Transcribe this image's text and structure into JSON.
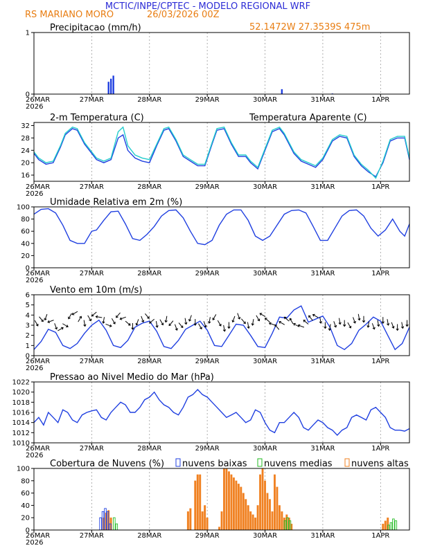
{
  "header": {
    "line1": "MCTIC/INPE/CPTEC - MODELO REGIONAL WRF",
    "location": "RS MARIANO MORO",
    "run": "26/03/2026 00Z",
    "coords": "52.1472W 27.3539S 475m"
  },
  "colors": {
    "blue": "#1f3fe0",
    "cyan": "#22cccc",
    "green": "#22bb22",
    "orange": "#f08020",
    "header_blue": "#2b2bd6",
    "header_orange": "#e87d12"
  },
  "x_axis": {
    "labels": [
      "26MAR",
      "27MAR",
      "28MAR",
      "29MAR",
      "30MAR",
      "31MAR",
      "1APR"
    ],
    "year": "2026",
    "hours": 156
  },
  "chart_data": [
    {
      "type": "bar",
      "id": "precip",
      "title": "Precipitacao (mm/h)",
      "ylim": [
        0,
        1
      ],
      "yticks": [
        "0",
        "1"
      ],
      "x_hours": [
        31,
        32,
        33,
        103,
        124
      ],
      "values": [
        0.2,
        0.25,
        0.3,
        0.08,
        0.01
      ]
    },
    {
      "type": "line",
      "id": "temp",
      "title": "2-m Temperatura (C)",
      "legend": "Temperatura Aparente (C)",
      "ylim": [
        14,
        33
      ],
      "yticks": [
        "16",
        "20",
        "24",
        "28",
        "32"
      ],
      "series": [
        {
          "name": "Temperatura",
          "x": [
            0,
            2,
            5,
            8,
            11,
            13,
            16,
            18,
            21,
            24,
            26,
            29,
            32,
            35,
            37,
            39,
            42,
            45,
            48,
            51,
            54,
            56,
            59,
            62,
            65,
            68,
            71,
            74,
            76,
            79,
            82,
            85,
            88,
            90,
            93,
            96,
            99,
            102,
            104,
            108,
            111,
            114,
            117,
            120,
            124,
            127,
            130,
            133,
            136,
            139,
            142,
            145,
            148,
            151,
            154,
            156
          ],
          "values": [
            23,
            21,
            19.5,
            20,
            25,
            29,
            31,
            30.5,
            26,
            23,
            21,
            20,
            21,
            28,
            29,
            24,
            21.5,
            20.5,
            20,
            25.5,
            30.5,
            31,
            27,
            22,
            20.5,
            19,
            19,
            26,
            30.5,
            31,
            26,
            22,
            22,
            20,
            18,
            24,
            30,
            31,
            29,
            23,
            20.5,
            19.5,
            18.5,
            21,
            27,
            28.5,
            28,
            22,
            19,
            17,
            15.5,
            20,
            27,
            28,
            28,
            21
          ]
        },
        {
          "name": "Temperatura Aparente",
          "x": [
            0,
            2,
            5,
            8,
            11,
            13,
            16,
            18,
            21,
            24,
            26,
            29,
            32,
            35,
            37,
            39,
            42,
            45,
            48,
            51,
            54,
            56,
            59,
            62,
            65,
            68,
            71,
            74,
            76,
            79,
            82,
            85,
            88,
            90,
            93,
            96,
            99,
            102,
            104,
            108,
            111,
            114,
            117,
            120,
            124,
            127,
            130,
            133,
            136,
            139,
            142,
            145,
            148,
            151,
            154,
            156
          ],
          "values": [
            23.5,
            21.5,
            20,
            20.5,
            25.5,
            29.5,
            31.5,
            31,
            26.5,
            23.5,
            21.5,
            20.5,
            21.5,
            30,
            31.5,
            25.5,
            22.5,
            21.5,
            21,
            26,
            31,
            31.5,
            27.5,
            22.5,
            21,
            19.5,
            19.5,
            26.5,
            31,
            31.5,
            26.5,
            22.5,
            22.5,
            20.5,
            18.5,
            24.5,
            30.5,
            31.5,
            29.5,
            23.5,
            21,
            20,
            19,
            21.5,
            27.5,
            29,
            28.5,
            22.5,
            19.5,
            17.5,
            15,
            20.5,
            27.5,
            28.5,
            28.5,
            21.5
          ]
        }
      ]
    },
    {
      "type": "line",
      "id": "rh",
      "title": "Umidade Relativa em 2m (%)",
      "ylim": [
        0,
        100
      ],
      "yticks": [
        "0",
        "20",
        "40",
        "60",
        "80",
        "100"
      ],
      "series": [
        {
          "name": "Umidade Relativa",
          "x": [
            0,
            3,
            6,
            9,
            12,
            15,
            18,
            21,
            24,
            26,
            29,
            32,
            35,
            38,
            41,
            44,
            47,
            50,
            53,
            56,
            59,
            62,
            65,
            68,
            71,
            74,
            77,
            80,
            83,
            86,
            89,
            92,
            95,
            98,
            101,
            104,
            107,
            110,
            113,
            116,
            119,
            122,
            125,
            128,
            131,
            134,
            137,
            140,
            143,
            146,
            149,
            152,
            154,
            156
          ],
          "values": [
            88,
            96,
            97,
            90,
            70,
            45,
            40,
            40,
            60,
            62,
            78,
            92,
            93,
            72,
            48,
            45,
            55,
            68,
            85,
            94,
            95,
            82,
            60,
            40,
            38,
            45,
            70,
            88,
            95,
            95,
            78,
            52,
            45,
            52,
            70,
            88,
            94,
            95,
            90,
            68,
            45,
            45,
            65,
            85,
            94,
            95,
            85,
            65,
            52,
            62,
            80,
            60,
            52,
            72
          ]
        }
      ]
    },
    {
      "type": "line",
      "id": "wind",
      "title": "Vento em 10m (m/s)",
      "ylim": [
        0,
        6
      ],
      "yticks": [
        "0",
        "1",
        "2",
        "3",
        "4",
        "5",
        "6"
      ],
      "series": [
        {
          "name": "Vento",
          "x": [
            0,
            3,
            6,
            9,
            12,
            15,
            18,
            21,
            24,
            27,
            30,
            33,
            36,
            39,
            42,
            45,
            48,
            51,
            54,
            57,
            60,
            63,
            66,
            69,
            72,
            75,
            78,
            81,
            84,
            87,
            90,
            93,
            96,
            99,
            102,
            105,
            108,
            111,
            114,
            117,
            120,
            123,
            126,
            129,
            132,
            135,
            138,
            141,
            144,
            147,
            150,
            153,
            156
          ],
          "values": [
            0.6,
            1.4,
            2.6,
            2.3,
            1,
            0.7,
            1.2,
            2.2,
            3,
            3.5,
            2.5,
            1,
            0.8,
            1.5,
            2.8,
            3.2,
            3.4,
            2.4,
            0.9,
            0.7,
            1.5,
            2.6,
            3,
            3.4,
            2.5,
            1,
            0.9,
            2,
            3.1,
            3,
            2,
            0.9,
            0.8,
            2.2,
            3.8,
            3.7,
            4.5,
            4.9,
            3.3,
            3.6,
            3.9,
            2.8,
            1,
            0.6,
            1.2,
            2.5,
            3.1,
            3.8,
            3.4,
            2,
            0.6,
            1.2,
            2.8
          ]
        }
      ],
      "barbs": {
        "x_hours": [
          1,
          3,
          5,
          7,
          9,
          11,
          13,
          15,
          17,
          19,
          21,
          23,
          25,
          27,
          29,
          31,
          33,
          35,
          37,
          39,
          41,
          43,
          45,
          47,
          49,
          51,
          53,
          55,
          57,
          59,
          61,
          63,
          65,
          67,
          69,
          71,
          73,
          75,
          77,
          79,
          81,
          83,
          85,
          87,
          89,
          91,
          93,
          95,
          97,
          99,
          101,
          103,
          105,
          107,
          109,
          111,
          113,
          115,
          117,
          119,
          121,
          123,
          125,
          127,
          129,
          131,
          133,
          135,
          137,
          139,
          141,
          143,
          145,
          147,
          149,
          151,
          153,
          155
        ],
        "speeds": [
          3.2,
          3.6,
          3.8,
          3.4,
          2.9,
          2.6,
          3.0,
          3.9,
          4.2,
          3.6,
          3.2,
          3.7,
          4.1,
          3.8,
          3.5,
          3.0,
          3.4,
          4.0,
          3.7,
          3.2,
          2.9,
          3.3,
          3.6,
          3.9,
          3.4,
          3.1,
          3.3,
          3.6,
          3.2,
          2.8,
          3.0,
          3.4,
          3.7,
          3.3,
          2.9,
          3.1,
          3.5,
          3.8,
          3.2,
          2.7,
          3.0,
          3.6,
          3.9,
          3.4,
          3.0,
          3.3,
          3.7,
          4.0,
          3.5,
          3.1,
          2.8,
          3.2,
          3.6,
          3.4,
          3.0,
          2.9,
          3.3,
          3.7,
          3.9,
          3.5,
          3.0,
          2.8,
          3.1,
          3.4,
          3.2,
          3.0,
          3.5,
          3.8,
          3.6,
          3.1,
          2.9,
          3.2,
          3.5,
          3.3,
          3.0,
          2.8,
          3.0,
          3.2
        ],
        "directions_deg": [
          300,
          310,
          250,
          200,
          290,
          30,
          330,
          240,
          210,
          60,
          280,
          300,
          220,
          170,
          260,
          340,
          300,
          230,
          200,
          320,
          270,
          250,
          290,
          310,
          220,
          280,
          300,
          260,
          230,
          290,
          310,
          280,
          250,
          270,
          300,
          290,
          260,
          240,
          300,
          280,
          270,
          250,
          290,
          310,
          280,
          260,
          300,
          150,
          140,
          160,
          130,
          150,
          140,
          120,
          150,
          160,
          140,
          130,
          150,
          280,
          270,
          260,
          290,
          280,
          270,
          300,
          290,
          280,
          270,
          260,
          290,
          280,
          270,
          280,
          290,
          270,
          280,
          270
        ]
      }
    },
    {
      "type": "line",
      "id": "pressure",
      "title": "Pressao ao Nivel Medio do Mar (hPa)",
      "ylim": [
        1010,
        1022
      ],
      "yticks": [
        "1010",
        "1012",
        "1014",
        "1016",
        "1018",
        "1020",
        "1022"
      ],
      "series": [
        {
          "name": "Pressao",
          "x": [
            0,
            2,
            4,
            6,
            8,
            10,
            12,
            14,
            16,
            18,
            20,
            22,
            24,
            26,
            28,
            30,
            32,
            34,
            36,
            38,
            40,
            42,
            44,
            46,
            48,
            50,
            52,
            54,
            56,
            58,
            60,
            62,
            64,
            66,
            68,
            70,
            72,
            74,
            76,
            78,
            80,
            82,
            84,
            86,
            88,
            90,
            92,
            94,
            96,
            98,
            100,
            102,
            104,
            106,
            108,
            110,
            112,
            114,
            116,
            118,
            120,
            122,
            124,
            126,
            128,
            130,
            132,
            134,
            136,
            138,
            140,
            142,
            144,
            146,
            148,
            150,
            152,
            154,
            156
          ],
          "values": [
            1014,
            1015,
            1013.5,
            1016,
            1015,
            1014,
            1016.5,
            1016,
            1014.5,
            1014,
            1015.5,
            1016,
            1016.3,
            1016.5,
            1015,
            1014.5,
            1016,
            1017,
            1018,
            1017.5,
            1016,
            1016,
            1017,
            1018.5,
            1019,
            1020,
            1018.5,
            1017.5,
            1017,
            1016,
            1015.5,
            1017,
            1019,
            1019.5,
            1020.5,
            1019.5,
            1019,
            1018,
            1017,
            1016,
            1015,
            1015.5,
            1016,
            1015,
            1014,
            1014.5,
            1016.5,
            1016,
            1014,
            1012.5,
            1012,
            1014,
            1014,
            1015,
            1016,
            1015,
            1013,
            1012.5,
            1013.5,
            1014.5,
            1014,
            1013,
            1012.5,
            1011.5,
            1012.5,
            1013,
            1015,
            1015.5,
            1015,
            1014.5,
            1016.5,
            1017,
            1016,
            1015,
            1013,
            1012.5,
            1012.5,
            1012.3,
            1012.8
          ]
        }
      ]
    },
    {
      "type": "bar",
      "id": "clouds",
      "title": "Cobertura de Nuvens (%)",
      "ylim": [
        0,
        100
      ],
      "yticks": [
        "0",
        "20",
        "40",
        "60",
        "80",
        "100"
      ],
      "legend": [
        "nuvens baixas",
        "nuvens medias",
        "nuvens altas"
      ],
      "series": [
        {
          "name": "nuvens baixas",
          "x_hours": [
            28,
            29,
            30,
            31,
            32
          ],
          "values": [
            20,
            30,
            35,
            30,
            10
          ]
        },
        {
          "name": "nuvens medias",
          "x_hours": [
            33,
            34,
            104,
            105,
            106,
            147,
            148,
            149,
            150
          ],
          "values": [
            20,
            10,
            15,
            20,
            15,
            8,
            12,
            18,
            15
          ]
        },
        {
          "name": "nuvens altas",
          "x_hours": [
            29,
            30,
            31,
            32,
            64,
            65,
            67,
            68,
            69,
            70,
            71,
            72,
            77,
            78,
            79,
            80,
            81,
            82,
            83,
            84,
            85,
            86,
            87,
            88,
            89,
            90,
            91,
            92,
            93,
            94,
            95,
            96,
            97,
            98,
            99,
            100,
            101,
            102,
            103,
            104,
            105,
            106,
            107,
            145,
            146,
            147
          ],
          "values": [
            20,
            28,
            32,
            20,
            30,
            35,
            80,
            90,
            90,
            30,
            40,
            20,
            5,
            30,
            100,
            100,
            95,
            90,
            85,
            80,
            75,
            70,
            60,
            50,
            40,
            30,
            25,
            20,
            40,
            90,
            100,
            80,
            60,
            50,
            30,
            90,
            70,
            40,
            30,
            20,
            25,
            20,
            10,
            10,
            15,
            20
          ]
        }
      ]
    }
  ]
}
